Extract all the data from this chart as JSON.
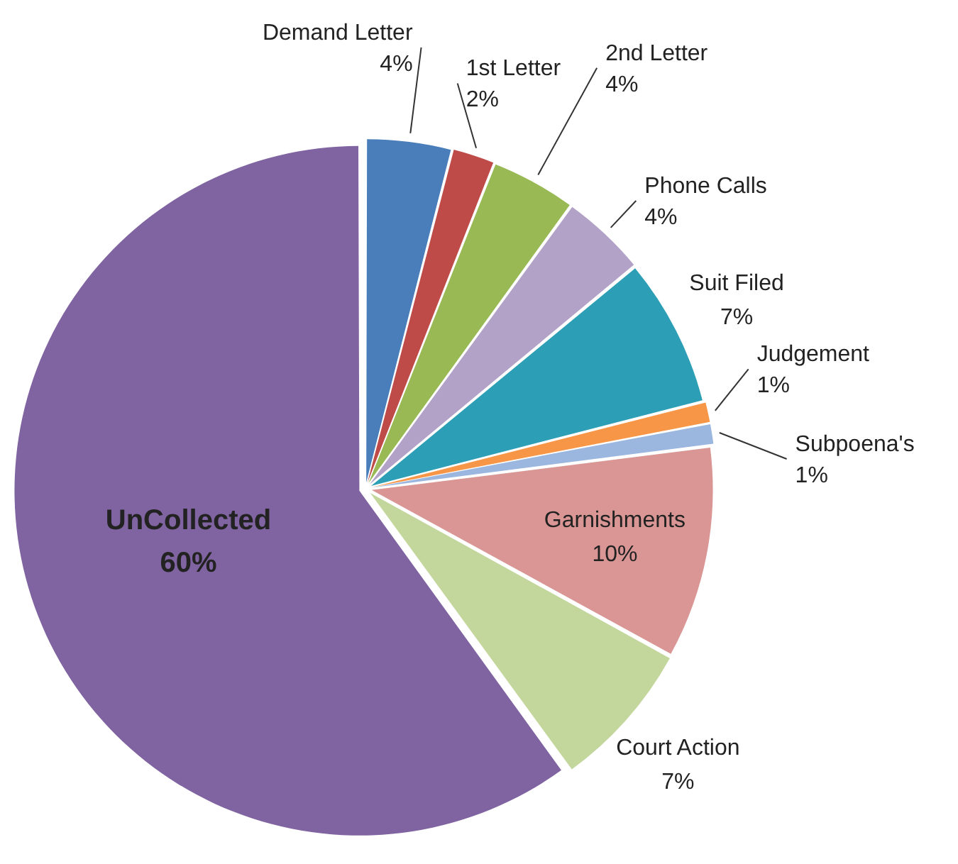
{
  "chart_data": {
    "type": "pie",
    "categories": [
      "Demand Letter",
      "1st Letter",
      "2nd Letter",
      "Phone Calls",
      "Suit Filed",
      "Judgement",
      "Subpoena's",
      "Garnishments",
      "Court Action",
      "UnCollected"
    ],
    "values": [
      4,
      2,
      4,
      4,
      7,
      1,
      1,
      10,
      7,
      60
    ],
    "value_labels": [
      "4%",
      "2%",
      "4%",
      "4%",
      "7%",
      "1%",
      "1%",
      "10%",
      "7%",
      "60%"
    ],
    "colors": [
      "#4a7ebb",
      "#be4b48",
      "#98b954",
      "#b3a2c7",
      "#2c9fb6",
      "#f79646",
      "#9bb7e0",
      "#d99694",
      "#c3d69b",
      "#8064a2"
    ],
    "legend": false
  }
}
